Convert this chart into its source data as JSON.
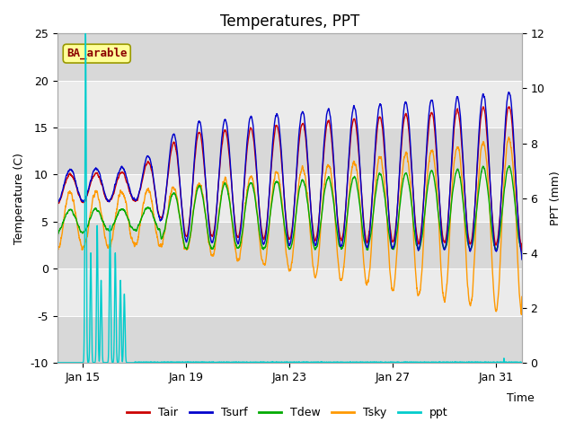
{
  "title": "Temperatures, PPT",
  "xlabel": "Time",
  "ylabel_left": "Temperature (C)",
  "ylabel_right": "PPT (mm)",
  "ylim_left": [
    -10,
    25
  ],
  "ylim_right": [
    0,
    12
  ],
  "yticks_left": [
    -10,
    -5,
    0,
    5,
    10,
    15,
    20,
    25
  ],
  "yticks_right": [
    0,
    2,
    4,
    6,
    8,
    10,
    12
  ],
  "xtick_labels": [
    "Jan 15",
    "Jan 19",
    "Jan 23",
    "Jan 27",
    "Jan 31"
  ],
  "legend_labels": [
    "Tair",
    "Tsurf",
    "Tdew",
    "Tsky",
    "ppt"
  ],
  "line_colors": [
    "#cc0000",
    "#0000cc",
    "#00aa00",
    "#ff9900",
    "#00cccc"
  ],
  "annotation_text": "BA_arable",
  "annotation_color": "#8b0000",
  "annotation_bg": "#ffff99",
  "band_colors": [
    "#d8d8d8",
    "#ebebeb"
  ],
  "title_fontsize": 12,
  "label_fontsize": 9,
  "tick_fontsize": 9
}
